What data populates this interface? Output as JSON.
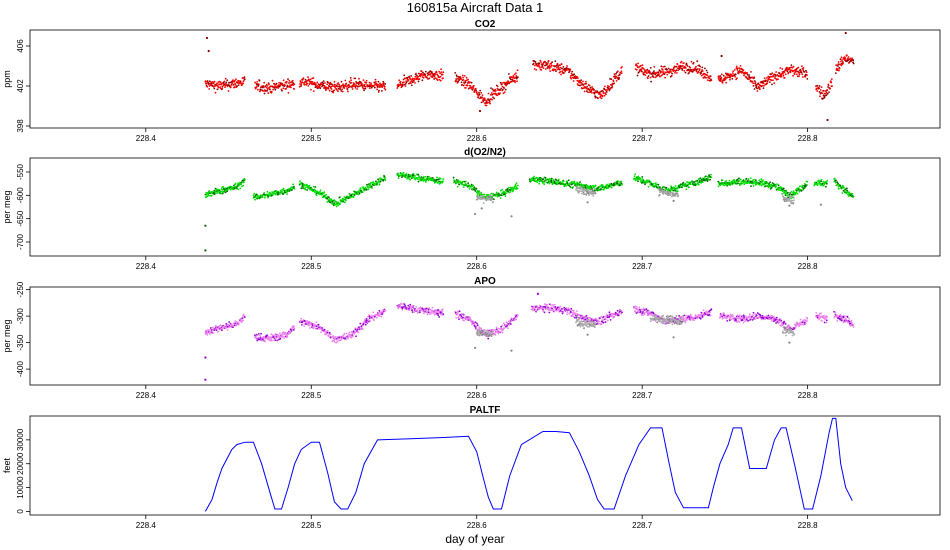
{
  "figure": {
    "title": "160815a   Aircraft Data 1",
    "xlabel": "day of year"
  },
  "chart_data": [
    {
      "type": "scatter",
      "title": "CO2",
      "ylabel": "ppm",
      "xlim": [
        228.33,
        228.88
      ],
      "ylim": [
        397.8,
        407.6
      ],
      "xticks": [
        228.4,
        228.5,
        228.6,
        228.7,
        228.8
      ],
      "yticks": [
        398,
        402,
        406
      ],
      "series": [
        {
          "color": "#ff0000",
          "edge_color": "#8b0000",
          "noise": 0.55,
          "segments": [
            {
              "x": [
                228.436,
                228.445,
                228.455,
                228.46
              ],
              "y": [
                402.2,
                402.0,
                402.3,
                402.4
              ]
            },
            {
              "x": [
                228.466,
                228.475,
                228.485,
                228.49
              ],
              "y": [
                402.0,
                401.8,
                402.1,
                402.2
              ]
            },
            {
              "x": [
                228.493,
                228.505,
                228.515,
                228.525,
                228.535,
                228.545
              ],
              "y": [
                402.5,
                402.1,
                401.8,
                402.2,
                402.0,
                401.9
              ]
            },
            {
              "x": [
                228.552,
                228.56,
                228.57,
                228.58
              ],
              "y": [
                402.0,
                402.6,
                403.2,
                403.0
              ]
            },
            {
              "x": [
                228.587,
                228.595,
                228.605,
                228.615,
                228.625
              ],
              "y": [
                402.8,
                402.2,
                400.5,
                401.8,
                403.2
              ]
            },
            {
              "x": [
                228.634,
                228.645,
                228.655,
                228.665,
                228.675,
                228.688
              ],
              "y": [
                404.2,
                404.0,
                403.5,
                402.0,
                401.0,
                403.6
              ]
            },
            {
              "x": [
                228.696,
                228.705,
                228.715,
                228.725,
                228.735,
                228.742
              ],
              "y": [
                403.8,
                403.2,
                403.4,
                404.0,
                403.6,
                402.8
              ]
            },
            {
              "x": [
                228.746,
                228.76,
                228.77,
                228.78,
                228.79,
                228.8
              ],
              "y": [
                402.5,
                403.6,
                401.8,
                403.0,
                403.6,
                403.2
              ]
            },
            {
              "x": [
                228.805,
                228.81,
                228.815
              ],
              "y": [
                402.0,
                401.0,
                402.5
              ]
            },
            {
              "x": [
                228.817,
                228.822,
                228.828
              ],
              "y": [
                403.5,
                404.8,
                404.4
              ]
            }
          ],
          "spikes": [
            {
              "x": 228.437,
              "y": 406.8
            },
            {
              "x": 228.438,
              "y": 405.5
            },
            {
              "x": 228.823,
              "y": 407.3
            },
            {
              "x": 228.812,
              "y": 398.6
            },
            {
              "x": 228.602,
              "y": 399.5
            },
            {
              "x": 228.748,
              "y": 405.0
            }
          ]
        }
      ]
    },
    {
      "type": "scatter",
      "title": "d(O2/N2)",
      "ylabel": "per meg",
      "xlim": [
        228.33,
        228.88
      ],
      "ylim": [
        -730,
        -520
      ],
      "xticks": [
        228.4,
        228.5,
        228.6,
        228.7,
        228.8
      ],
      "yticks": [
        -550,
        -600,
        -650,
        -700
      ],
      "series": [
        {
          "color": "#00e000",
          "edge_color": "#006400",
          "noise": 7,
          "segments": [
            {
              "x": [
                228.436,
                228.445,
                228.455,
                228.46
              ],
              "y": [
                -600,
                -590,
                -582,
                -568
              ]
            },
            {
              "x": [
                228.465,
                228.475,
                228.485,
                228.49
              ],
              "y": [
                -605,
                -598,
                -590,
                -582
              ]
            },
            {
              "x": [
                228.493,
                228.505,
                228.515,
                228.525,
                228.535,
                228.545
              ],
              "y": [
                -575,
                -595,
                -618,
                -600,
                -580,
                -562
              ]
            },
            {
              "x": [
                228.552,
                228.56,
                228.57,
                228.58
              ],
              "y": [
                -555,
                -560,
                -565,
                -570
              ]
            },
            {
              "x": [
                228.586,
                228.595,
                228.605,
                228.615,
                228.625
              ],
              "y": [
                -570,
                -578,
                -605,
                -598,
                -580
              ]
            },
            {
              "x": [
                228.632,
                228.645,
                228.655,
                228.665,
                228.675,
                228.688
              ],
              "y": [
                -565,
                -570,
                -575,
                -580,
                -585,
                -572
              ]
            },
            {
              "x": [
                228.695,
                228.705,
                228.715,
                228.725,
                228.735,
                228.742
              ],
              "y": [
                -562,
                -575,
                -590,
                -580,
                -570,
                -560
              ]
            },
            {
              "x": [
                228.746,
                228.76,
                228.77,
                228.78,
                228.79,
                228.8
              ],
              "y": [
                -575,
                -570,
                -572,
                -580,
                -600,
                -575
              ]
            },
            {
              "x": [
                228.804,
                228.812
              ],
              "y": [
                -572,
                -575
              ]
            },
            {
              "x": [
                228.816,
                228.822,
                228.828
              ],
              "y": [
                -568,
                -588,
                -605
              ]
            }
          ],
          "spikes": [
            {
              "x": 228.436,
              "y": -665
            },
            {
              "x": 228.436,
              "y": -718
            }
          ]
        },
        {
          "color": "#aaaaaa",
          "edge_color": "#888888",
          "noise": 8,
          "segments": [
            {
              "x": [
                228.6,
                228.61
              ],
              "y": [
                -605,
                -608
              ]
            },
            {
              "x": [
                228.66,
                228.672
              ],
              "y": [
                -588,
                -595
              ]
            },
            {
              "x": [
                228.71,
                228.722
              ],
              "y": [
                -592,
                -600
              ]
            },
            {
              "x": [
                228.785,
                228.792
              ],
              "y": [
                -605,
                -610
              ]
            }
          ],
          "spikes": [
            {
              "x": 228.599,
              "y": -640
            },
            {
              "x": 228.621,
              "y": -645
            },
            {
              "x": 228.603,
              "y": -628
            },
            {
              "x": 228.667,
              "y": -615
            },
            {
              "x": 228.719,
              "y": -612
            },
            {
              "x": 228.808,
              "y": -620
            },
            {
              "x": 228.789,
              "y": -622
            }
          ]
        }
      ]
    },
    {
      "type": "scatter",
      "title": "APO",
      "ylabel": "per meg",
      "xlim": [
        228.33,
        228.88
      ],
      "ylim": [
        -430,
        -245
      ],
      "xticks": [
        228.4,
        228.5,
        228.6,
        228.7,
        228.8
      ],
      "yticks": [
        -250,
        -300,
        -350,
        -400
      ],
      "series": [
        {
          "color": "#ee82ee",
          "edge_color": "#9400d3",
          "noise": 7,
          "segments": [
            {
              "x": [
                228.436,
                228.445,
                228.455,
                228.46
              ],
              "y": [
                -330,
                -322,
                -315,
                -300
              ]
            },
            {
              "x": [
                228.466,
                228.475,
                228.485,
                228.49
              ],
              "y": [
                -340,
                -342,
                -335,
                -320
              ]
            },
            {
              "x": [
                228.493,
                228.505,
                228.515,
                228.525,
                228.535,
                228.545
              ],
              "y": [
                -310,
                -320,
                -345,
                -335,
                -305,
                -290
              ]
            },
            {
              "x": [
                228.552,
                228.56,
                228.57,
                228.58
              ],
              "y": [
                -280,
                -285,
                -290,
                -295
              ]
            },
            {
              "x": [
                228.587,
                228.595,
                228.605,
                228.615,
                228.625
              ],
              "y": [
                -295,
                -305,
                -335,
                -325,
                -300
              ]
            },
            {
              "x": [
                228.633,
                228.645,
                228.655,
                228.665,
                228.675,
                228.688
              ],
              "y": [
                -285,
                -285,
                -290,
                -305,
                -310,
                -290
              ]
            },
            {
              "x": [
                228.695,
                228.705,
                228.715,
                228.725,
                228.735,
                228.742
              ],
              "y": [
                -285,
                -295,
                -310,
                -305,
                -300,
                -290
              ]
            },
            {
              "x": [
                228.747,
                228.76,
                228.77,
                228.78,
                228.79,
                228.8
              ],
              "y": [
                -300,
                -305,
                -300,
                -305,
                -325,
                -305
              ]
            },
            {
              "x": [
                228.805,
                228.812
              ],
              "y": [
                -300,
                -305
              ]
            },
            {
              "x": [
                228.816,
                228.822,
                228.828
              ],
              "y": [
                -295,
                -305,
                -315
              ]
            }
          ],
          "spikes": [
            {
              "x": 228.436,
              "y": -378
            },
            {
              "x": 228.436,
              "y": -420
            },
            {
              "x": 228.637,
              "y": -258
            }
          ]
        },
        {
          "color": "#aaaaaa",
          "edge_color": "#888888",
          "noise": 8,
          "segments": [
            {
              "x": [
                228.6,
                228.61
              ],
              "y": [
                -330,
                -335
              ]
            },
            {
              "x": [
                228.66,
                228.672
              ],
              "y": [
                -310,
                -318
              ]
            },
            {
              "x": [
                228.705,
                228.725
              ],
              "y": [
                -305,
                -310
              ]
            },
            {
              "x": [
                228.785,
                228.792
              ],
              "y": [
                -325,
                -332
              ]
            }
          ],
          "spikes": [
            {
              "x": 228.599,
              "y": -360
            },
            {
              "x": 228.621,
              "y": -365
            },
            {
              "x": 228.667,
              "y": -335
            },
            {
              "x": 228.719,
              "y": -340
            },
            {
              "x": 228.789,
              "y": -350
            }
          ]
        }
      ]
    },
    {
      "type": "line",
      "title": "PALTF",
      "ylabel": "feet",
      "xlim": [
        228.33,
        228.88
      ],
      "ylim": [
        -1500,
        40000
      ],
      "xticks": [
        228.4,
        228.5,
        228.6,
        228.7,
        228.8
      ],
      "yticks": [
        0,
        10000,
        20000,
        30000
      ],
      "series": [
        {
          "color": "#0000ff",
          "x": [
            228.436,
            228.44,
            228.443,
            228.446,
            228.449,
            228.452,
            228.455,
            228.46,
            228.465,
            228.47,
            228.475,
            228.478,
            228.482,
            228.486,
            228.49,
            228.494,
            228.5,
            228.505,
            228.51,
            228.514,
            228.518,
            228.522,
            228.527,
            228.532,
            228.54,
            228.56,
            228.58,
            228.595,
            228.6,
            228.604,
            228.607,
            228.61,
            228.615,
            228.62,
            228.627,
            228.64,
            228.648,
            228.656,
            228.662,
            228.668,
            228.673,
            228.677,
            228.683,
            228.69,
            228.698,
            228.705,
            228.712,
            228.716,
            228.72,
            228.725,
            228.732,
            228.74,
            228.743,
            228.747,
            228.752,
            228.755,
            228.76,
            228.765,
            228.775,
            228.78,
            228.784,
            228.787,
            228.792,
            228.798,
            228.803,
            228.808,
            228.813,
            228.815,
            228.817,
            228.82,
            228.823,
            228.827
          ],
          "y": [
            0,
            5000,
            12000,
            18000,
            22000,
            26000,
            28000,
            29000,
            29000,
            20000,
            8000,
            1000,
            1000,
            10000,
            20000,
            26000,
            29000,
            29000,
            16000,
            4000,
            1000,
            1000,
            8000,
            20000,
            30000,
            30500,
            31000,
            31500,
            25000,
            14000,
            6000,
            1000,
            1000,
            15000,
            28000,
            33500,
            33500,
            33000,
            25000,
            15000,
            5000,
            1000,
            1000,
            15000,
            28000,
            35000,
            35000,
            21000,
            8000,
            1500,
            1500,
            1500,
            10000,
            20000,
            28000,
            35000,
            35000,
            18000,
            18000,
            30000,
            35000,
            35000,
            20000,
            1000,
            1000,
            15000,
            33000,
            39000,
            39000,
            20000,
            10000,
            4500
          ]
        }
      ]
    }
  ]
}
